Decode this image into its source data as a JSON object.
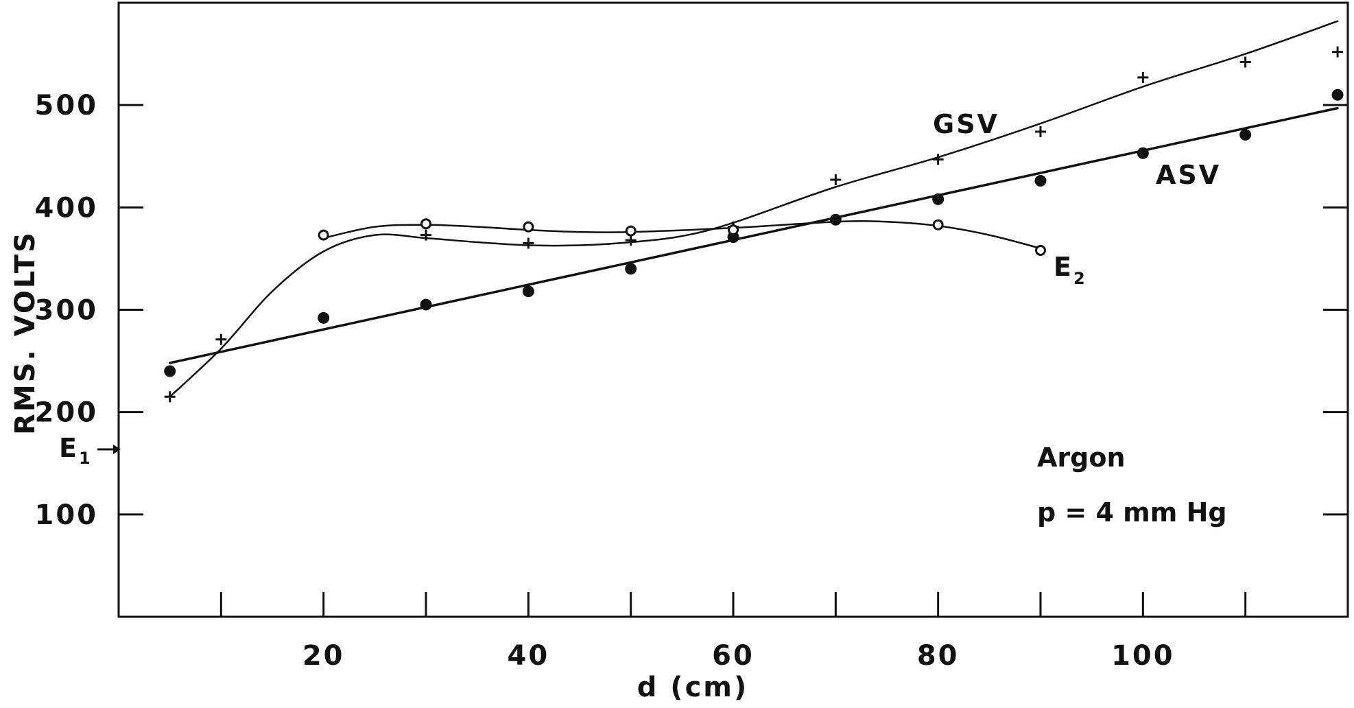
{
  "chart_data": {
    "type": "line",
    "title": "",
    "xlabel": "d (cm)",
    "ylabel": "RMS. VOLTS",
    "xlim": [
      0,
      120
    ],
    "ylim": [
      0,
      600
    ],
    "x_ticks": [
      10,
      20,
      30,
      40,
      50,
      60,
      70,
      80,
      90,
      100,
      110
    ],
    "x_tick_labels": [
      20,
      40,
      60,
      80,
      100
    ],
    "y_ticks": [
      100,
      200,
      300,
      400,
      500
    ],
    "y_tick_labels": [
      100,
      200,
      300,
      400,
      500
    ],
    "grid": false,
    "legend": "none",
    "series": [
      {
        "name": "GSV",
        "marker": "plus",
        "points": [
          [
            5,
            215
          ],
          [
            10,
            271
          ],
          [
            30,
            373
          ],
          [
            40,
            365
          ],
          [
            50,
            368
          ],
          [
            60,
            381
          ],
          [
            70,
            427
          ],
          [
            80,
            447
          ],
          [
            90,
            474
          ],
          [
            100,
            527
          ],
          [
            110,
            542
          ],
          [
            119,
            552
          ]
        ],
        "fit": [
          [
            5,
            215
          ],
          [
            10,
            262
          ],
          [
            15,
            318
          ],
          [
            20,
            357
          ],
          [
            25,
            373
          ],
          [
            30,
            370
          ],
          [
            35,
            366
          ],
          [
            40,
            363
          ],
          [
            45,
            363
          ],
          [
            50,
            366
          ],
          [
            55,
            372
          ],
          [
            60,
            385
          ],
          [
            70,
            420
          ],
          [
            80,
            449
          ],
          [
            90,
            482
          ],
          [
            100,
            518
          ],
          [
            110,
            550
          ],
          [
            119,
            582
          ]
        ]
      },
      {
        "name": "ASV",
        "marker": "dot",
        "points": [
          [
            5,
            240
          ],
          [
            20,
            292
          ],
          [
            30,
            305
          ],
          [
            40,
            318
          ],
          [
            50,
            340
          ],
          [
            60,
            371
          ],
          [
            70,
            388
          ],
          [
            80,
            408
          ],
          [
            90,
            426
          ],
          [
            100,
            453
          ],
          [
            110,
            471
          ],
          [
            119,
            510
          ]
        ],
        "fit": [
          [
            5,
            248
          ],
          [
            119,
            497
          ]
        ]
      },
      {
        "name": "E",
        "name_subscript": "2",
        "marker": "circle",
        "points": [
          [
            20,
            373
          ],
          [
            30,
            384
          ],
          [
            40,
            381
          ],
          [
            50,
            377
          ],
          [
            60,
            378
          ],
          [
            80,
            383
          ],
          [
            90,
            358
          ]
        ],
        "fit": [
          [
            20,
            370
          ],
          [
            25,
            381
          ],
          [
            30,
            383
          ],
          [
            35,
            381
          ],
          [
            40,
            378
          ],
          [
            45,
            376
          ],
          [
            50,
            376
          ],
          [
            60,
            380
          ],
          [
            70,
            386
          ],
          [
            75,
            386
          ],
          [
            80,
            382
          ],
          [
            85,
            373
          ],
          [
            90,
            360
          ]
        ]
      }
    ],
    "annotations": [
      {
        "id": "e1",
        "text": "E",
        "subscript": "1",
        "arrow": "→",
        "y": 172
      },
      {
        "id": "gas",
        "text": "Argon"
      },
      {
        "id": "pressure",
        "text": "p = 4 mm Hg"
      }
    ]
  }
}
